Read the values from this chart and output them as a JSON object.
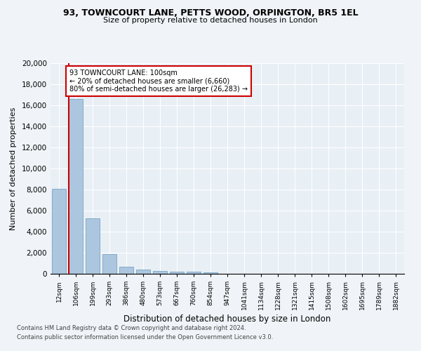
{
  "title_line1": "93, TOWNCOURT LANE, PETTS WOOD, ORPINGTON, BR5 1EL",
  "title_line2": "Size of property relative to detached houses in London",
  "xlabel": "Distribution of detached houses by size in London",
  "ylabel": "Number of detached properties",
  "bar_color": "#adc6e0",
  "bar_edge_color": "#6699bb",
  "categories": [
    "12sqm",
    "106sqm",
    "199sqm",
    "293sqm",
    "386sqm",
    "480sqm",
    "573sqm",
    "667sqm",
    "760sqm",
    "854sqm",
    "947sqm",
    "1041sqm",
    "1134sqm",
    "1228sqm",
    "1321sqm",
    "1415sqm",
    "1508sqm",
    "1602sqm",
    "1695sqm",
    "1789sqm",
    "1882sqm"
  ],
  "values": [
    8100,
    16600,
    5300,
    1850,
    700,
    380,
    280,
    220,
    185,
    130,
    0,
    0,
    0,
    0,
    0,
    0,
    0,
    0,
    0,
    0,
    0
  ],
  "ylim": [
    0,
    20000
  ],
  "yticks": [
    0,
    2000,
    4000,
    6000,
    8000,
    10000,
    12000,
    14000,
    16000,
    18000,
    20000
  ],
  "vline_color": "#cc0000",
  "annotation_text": "93 TOWNCOURT LANE: 100sqm\n← 20% of detached houses are smaller (6,660)\n80% of semi-detached houses are larger (26,283) →",
  "annotation_box_color": "#ffffff",
  "annotation_box_edge": "#cc0000",
  "footer_line1": "Contains HM Land Registry data © Crown copyright and database right 2024.",
  "footer_line2": "Contains public sector information licensed under the Open Government Licence v3.0.",
  "background_color": "#f0f4f8",
  "plot_bg_color": "#e8eff5"
}
